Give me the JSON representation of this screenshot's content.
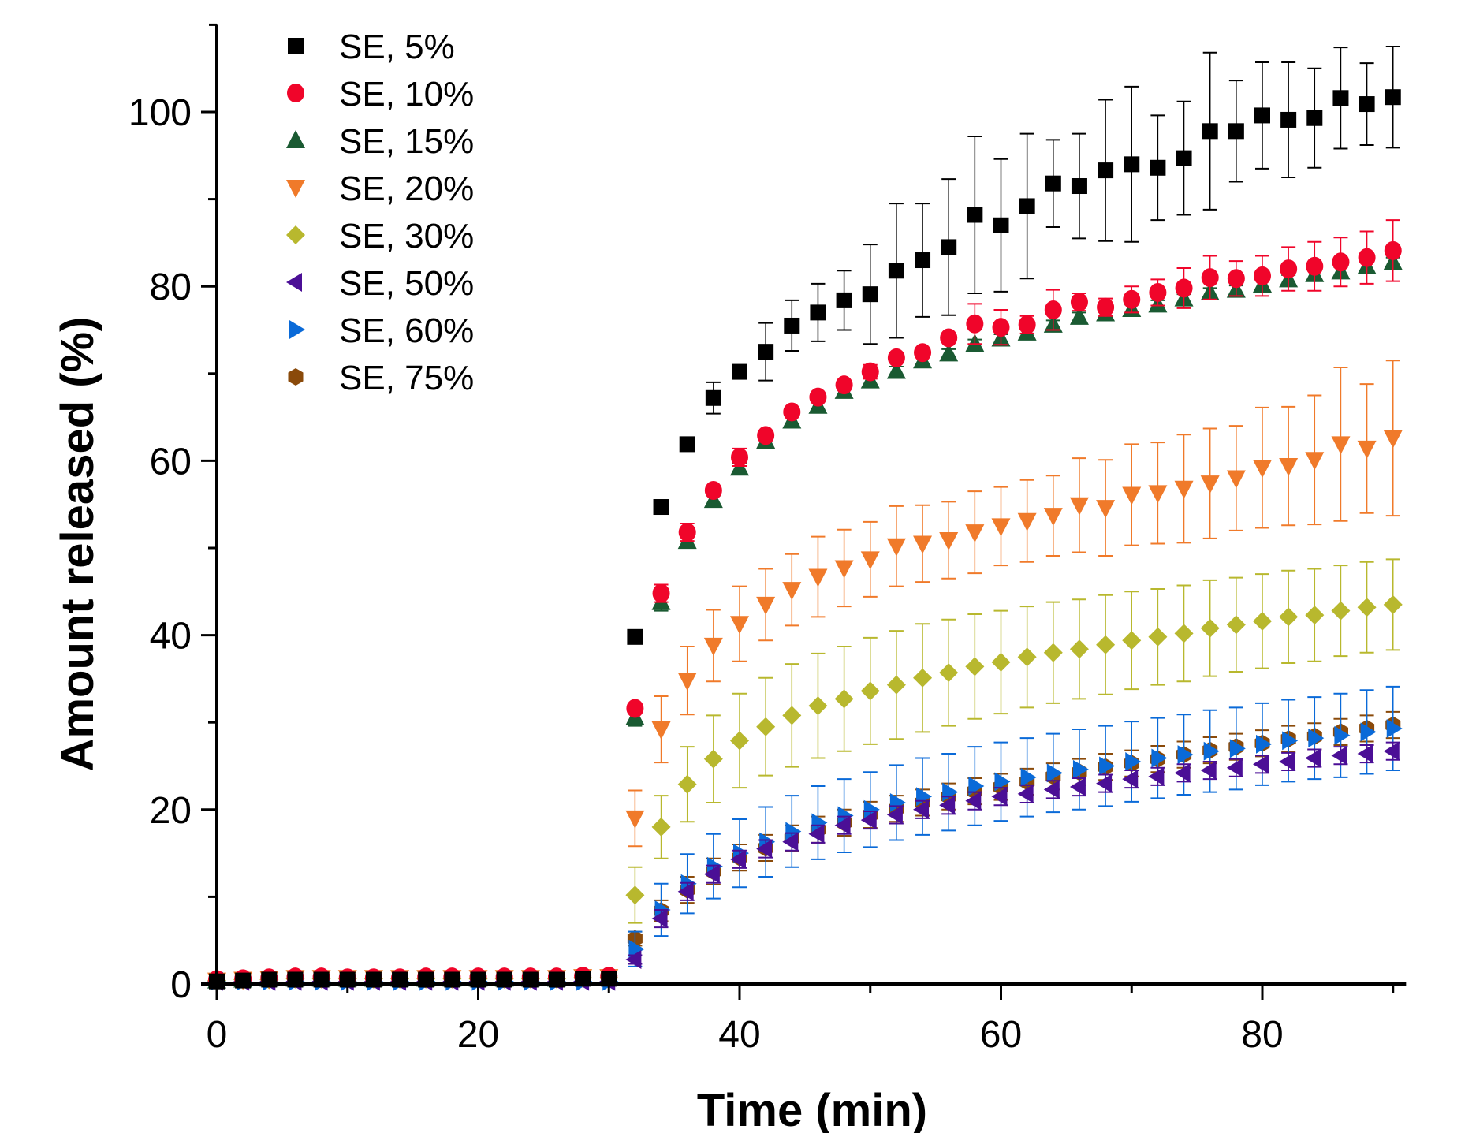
{
  "chart_data": {
    "type": "scatter",
    "title": "",
    "xlabel": "Time (min)",
    "ylabel": "Amount released (%)",
    "xlim": [
      0,
      91
    ],
    "ylim": [
      0,
      110
    ],
    "xticks": [
      0,
      20,
      40,
      60,
      80
    ],
    "xticks_minor": [
      10,
      30,
      50,
      70,
      90
    ],
    "yticks": [
      0,
      20,
      40,
      60,
      80,
      100
    ],
    "yticks_minor": [
      10,
      30,
      50,
      70,
      90
    ],
    "grid": false,
    "legend_position": "top-left",
    "x": [
      0,
      2,
      4,
      6,
      8,
      10,
      12,
      14,
      16,
      18,
      20,
      22,
      24,
      26,
      28,
      30,
      32,
      34,
      36,
      38,
      40,
      42,
      44,
      46,
      48,
      50,
      52,
      54,
      56,
      58,
      60,
      62,
      64,
      66,
      68,
      70,
      72,
      74,
      76,
      78,
      80,
      82,
      84,
      86,
      88,
      90
    ],
    "series": [
      {
        "name": "SE, 5%",
        "marker": "square",
        "color": "#000000",
        "values": [
          0.3,
          0.4,
          0.5,
          0.5,
          0.5,
          0.5,
          0.5,
          0.5,
          0.5,
          0.5,
          0.5,
          0.5,
          0.5,
          0.5,
          0.6,
          0.6,
          39.8,
          54.7,
          61.9,
          67.2,
          70.2,
          72.5,
          75.5,
          77.0,
          78.4,
          79.1,
          81.8,
          83.0,
          84.5,
          88.2,
          87.0,
          89.2,
          91.8,
          91.5,
          93.3,
          94.0,
          93.6,
          94.7,
          97.8,
          97.8,
          99.6,
          99.1,
          99.3,
          101.6,
          100.9,
          101.7
        ],
        "errors": [
          0,
          0,
          0,
          0,
          0,
          0,
          0,
          0,
          0,
          0,
          0,
          0,
          0,
          0,
          0,
          0,
          0.5,
          0.5,
          0.5,
          1.8,
          0.7,
          3.3,
          2.9,
          3.3,
          3.4,
          5.7,
          7.7,
          6.5,
          7.8,
          9.0,
          7.6,
          8.3,
          5.0,
          6.0,
          8.1,
          8.9,
          6.0,
          6.5,
          9.0,
          5.8,
          6.1,
          6.6,
          5.7,
          5.8,
          4.7,
          5.8
        ]
      },
      {
        "name": "SE, 10%",
        "marker": "circle",
        "color": "#f0052a",
        "values": [
          0.5,
          0.6,
          0.7,
          0.8,
          0.8,
          0.7,
          0.7,
          0.7,
          0.8,
          0.8,
          0.8,
          0.8,
          0.8,
          0.8,
          0.9,
          0.9,
          31.6,
          44.8,
          51.8,
          56.6,
          60.4,
          62.9,
          65.6,
          67.3,
          68.7,
          70.2,
          71.8,
          72.4,
          74.1,
          75.7,
          75.3,
          75.6,
          77.3,
          78.2,
          77.6,
          78.5,
          79.3,
          79.8,
          81.0,
          80.9,
          81.2,
          82.0,
          82.3,
          82.8,
          83.3,
          84.1
        ],
        "errors": [
          0,
          0,
          0,
          0,
          0,
          0,
          0,
          0,
          0,
          0,
          0,
          0,
          0,
          0,
          0,
          0,
          0.3,
          1.0,
          1.0,
          0.5,
          1.0,
          0.5,
          0.5,
          0.5,
          0.5,
          0.8,
          0.5,
          0.5,
          0.5,
          2.3,
          2.0,
          1.0,
          2.3,
          1.0,
          1.0,
          1.5,
          1.5,
          2.3,
          2.5,
          2.0,
          2.3,
          2.5,
          2.8,
          2.8,
          3.0,
          3.5
        ]
      },
      {
        "name": "SE, 15%",
        "marker": "triangle-up",
        "color": "#1a5a32",
        "values": [
          0.4,
          0.5,
          0.6,
          0.6,
          0.6,
          0.6,
          0.6,
          0.6,
          0.6,
          0.6,
          0.6,
          0.6,
          0.6,
          0.6,
          0.7,
          0.7,
          30.6,
          43.8,
          50.8,
          55.5,
          59.2,
          62.3,
          64.6,
          66.3,
          68.0,
          69.2,
          70.3,
          71.5,
          72.3,
          73.4,
          74.0,
          74.7,
          75.6,
          76.5,
          76.9,
          77.4,
          77.9,
          78.6,
          79.3,
          79.6,
          80.2,
          80.8,
          81.4,
          81.7,
          82.3,
          82.8
        ],
        "errors": [
          0,
          0,
          0,
          0,
          0,
          0,
          0,
          0,
          0,
          0,
          0,
          0,
          0,
          0,
          0,
          0,
          1.0,
          1.0,
          0.5,
          0.5,
          0.5,
          0.5,
          0.5,
          0.5,
          0.5,
          0.5,
          0.5,
          0.5,
          0.5,
          0.5,
          0.5,
          0.5,
          0.5,
          0.5,
          0.5,
          0.5,
          0.5,
          0.5,
          0.5,
          0.5,
          0.5,
          0.5,
          0.5,
          0.5,
          0.5,
          0.5
        ]
      },
      {
        "name": "SE, 20%",
        "marker": "triangle-down",
        "color": "#f07a2a",
        "values": [
          0.4,
          0.5,
          0.6,
          0.7,
          0.7,
          0.7,
          0.7,
          0.7,
          0.7,
          0.7,
          0.7,
          0.7,
          0.7,
          0.7,
          0.8,
          0.8,
          19.0,
          29.2,
          34.8,
          38.8,
          41.3,
          43.5,
          45.2,
          46.7,
          47.7,
          48.7,
          50.2,
          50.5,
          50.9,
          51.8,
          52.5,
          53.1,
          53.7,
          54.9,
          54.6,
          56.1,
          56.3,
          56.8,
          57.4,
          58.0,
          59.2,
          59.4,
          60.1,
          61.9,
          61.4,
          62.6
        ],
        "errors": [
          0,
          0,
          0,
          0,
          0,
          0,
          0,
          0,
          0,
          0,
          0,
          0,
          0,
          0,
          0,
          0,
          3.2,
          3.8,
          3.9,
          4.1,
          4.3,
          4.1,
          4.1,
          4.6,
          4.4,
          4.3,
          4.6,
          4.4,
          4.4,
          4.7,
          4.5,
          4.7,
          4.6,
          5.4,
          5.5,
          5.8,
          5.8,
          6.2,
          6.3,
          6.0,
          6.9,
          6.8,
          7.4,
          8.8,
          7.4,
          8.9
        ]
      },
      {
        "name": "SE, 30%",
        "marker": "diamond",
        "color": "#b8b82e",
        "values": [
          0.4,
          0.5,
          0.5,
          0.6,
          0.6,
          0.6,
          0.6,
          0.6,
          0.6,
          0.6,
          0.6,
          0.6,
          0.6,
          0.6,
          0.7,
          0.7,
          10.2,
          18.0,
          22.9,
          25.8,
          27.9,
          29.5,
          30.8,
          31.9,
          32.7,
          33.6,
          34.3,
          35.1,
          35.7,
          36.4,
          36.9,
          37.5,
          38.0,
          38.4,
          38.9,
          39.4,
          39.8,
          40.2,
          40.8,
          41.2,
          41.6,
          42.1,
          42.3,
          42.8,
          43.2,
          43.5
        ],
        "errors": [
          0,
          0,
          0,
          0,
          0,
          0,
          0,
          0,
          0,
          0,
          0,
          0,
          0,
          0,
          0,
          0,
          3.2,
          3.6,
          4.3,
          5.0,
          5.4,
          5.6,
          5.9,
          6.0,
          6.0,
          6.1,
          6.2,
          6.2,
          6.1,
          6.0,
          5.9,
          5.8,
          5.8,
          5.7,
          5.7,
          5.6,
          5.5,
          5.5,
          5.5,
          5.4,
          5.4,
          5.3,
          5.3,
          5.2,
          5.2,
          5.2
        ]
      },
      {
        "name": "SE, 50%",
        "marker": "triangle-left",
        "color": "#4b0f96",
        "values": [
          0.3,
          0.3,
          0.3,
          0.3,
          0.3,
          0.3,
          0.3,
          0.3,
          0.3,
          0.3,
          0.3,
          0.3,
          0.3,
          0.3,
          0.3,
          0.3,
          2.8,
          7.5,
          10.6,
          12.6,
          14.3,
          15.5,
          16.3,
          17.2,
          18.2,
          18.8,
          19.4,
          20.0,
          20.5,
          21.0,
          21.5,
          21.8,
          22.3,
          22.6,
          23.0,
          23.5,
          23.8,
          24.2,
          24.5,
          24.8,
          25.2,
          25.5,
          25.9,
          26.2,
          26.4,
          26.7
        ],
        "errors": [
          0,
          0,
          0,
          0,
          0,
          0,
          0,
          0,
          0,
          0,
          0,
          0,
          0,
          0,
          0,
          0,
          0.5,
          1.0,
          1.0,
          1.0,
          1.0,
          1.0,
          1.0,
          1.0,
          1.0,
          1.0,
          1.0,
          1.0,
          1.0,
          1.0,
          1.0,
          1.0,
          1.0,
          1.0,
          1.0,
          1.0,
          1.0,
          1.0,
          1.0,
          1.0,
          1.0,
          1.0,
          1.0,
          1.0,
          1.0,
          1.0
        ]
      },
      {
        "name": "SE, 60%",
        "marker": "triangle-right",
        "color": "#0a6ad8",
        "values": [
          0.3,
          0.3,
          0.3,
          0.3,
          0.3,
          0.3,
          0.3,
          0.3,
          0.3,
          0.3,
          0.3,
          0.3,
          0.3,
          0.3,
          0.3,
          0.3,
          4.0,
          8.5,
          11.5,
          13.5,
          15.0,
          16.3,
          17.5,
          18.5,
          19.3,
          20.0,
          20.8,
          21.5,
          22.0,
          22.7,
          23.2,
          23.7,
          24.2,
          24.6,
          25.0,
          25.5,
          25.9,
          26.3,
          26.7,
          27.0,
          27.5,
          27.9,
          28.2,
          28.5,
          28.9,
          29.3
        ],
        "errors": [
          0,
          0,
          0,
          0,
          0,
          0,
          0,
          0,
          0,
          0,
          0,
          0,
          0,
          0,
          0,
          0,
          2.0,
          3.0,
          3.4,
          3.7,
          3.9,
          4.0,
          4.1,
          4.2,
          4.2,
          4.3,
          4.3,
          4.4,
          4.4,
          4.5,
          4.5,
          4.5,
          4.5,
          4.6,
          4.6,
          4.6,
          4.6,
          4.6,
          4.7,
          4.7,
          4.7,
          4.7,
          4.7,
          4.8,
          4.8,
          4.8
        ]
      },
      {
        "name": "SE, 75%",
        "marker": "hexagon",
        "color": "#8a4a0a",
        "values": [
          0.4,
          0.5,
          0.5,
          0.5,
          0.5,
          0.5,
          0.5,
          0.5,
          0.5,
          0.5,
          0.5,
          0.5,
          0.5,
          0.5,
          0.6,
          0.6,
          5.2,
          8.4,
          10.8,
          12.9,
          14.5,
          15.6,
          16.7,
          17.7,
          18.5,
          19.4,
          20.1,
          20.8,
          21.5,
          22.1,
          22.6,
          23.2,
          23.8,
          24.3,
          24.9,
          25.3,
          25.8,
          26.3,
          26.8,
          27.2,
          27.6,
          28.1,
          28.4,
          28.9,
          29.3,
          29.7
        ],
        "errors": [
          0,
          0,
          0,
          0,
          0,
          0,
          0,
          0,
          0,
          0,
          0,
          0,
          0,
          0,
          0,
          0,
          0.8,
          1.2,
          1.5,
          1.5,
          1.5,
          1.5,
          1.5,
          1.5,
          1.5,
          1.5,
          1.5,
          1.5,
          1.5,
          1.5,
          1.5,
          1.5,
          1.5,
          1.5,
          1.5,
          1.5,
          1.5,
          1.5,
          1.5,
          1.5,
          1.5,
          1.5,
          1.5,
          1.5,
          1.5,
          1.5
        ]
      }
    ]
  }
}
